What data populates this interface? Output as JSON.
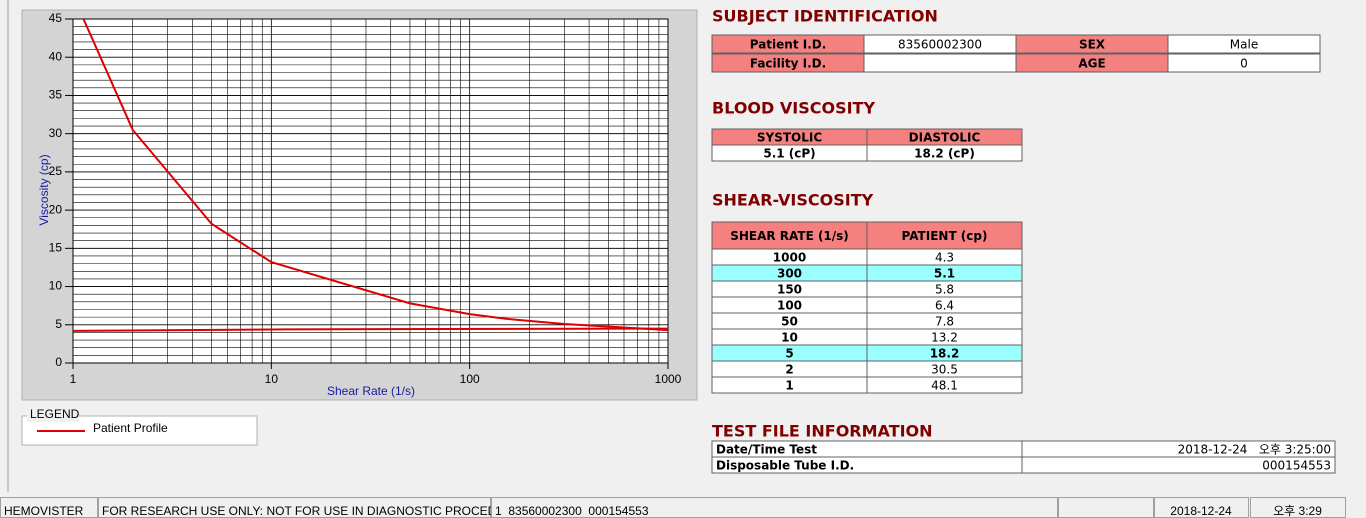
{
  "chart_data": {
    "type": "line",
    "x_label": "Shear Rate (1/s)",
    "y_label": "Viscosity (cp)",
    "log_x": true,
    "grid": true,
    "xlim": [
      1,
      1000
    ],
    "xticks": [
      1,
      10,
      100,
      1000
    ],
    "ylim": [
      0,
      45
    ],
    "yticks": [
      0,
      5,
      10,
      15,
      20,
      25,
      30,
      35,
      40,
      45
    ],
    "legend_title": "LEGEND",
    "series": [
      {
        "name": "Patient Profile",
        "color": "#dd0000",
        "x": [
          1,
          2,
          5,
          10,
          50,
          100,
          150,
          300,
          1000
        ],
        "values": [
          48.1,
          30.5,
          18.2,
          13.2,
          7.8,
          6.4,
          5.8,
          5.1,
          4.3
        ]
      },
      {
        "color": "#dd0000",
        "x": [
          1,
          12,
          1000
        ],
        "values": [
          4.2,
          4.4,
          4.5
        ]
      }
    ]
  },
  "subject_identification": {
    "title": "SUBJECT IDENTIFICATION",
    "fields": [
      {
        "label": "Patient I.D.",
        "value": "83560002300"
      },
      {
        "label": "SEX",
        "value": "Male"
      },
      {
        "label": "Facility I.D."
      },
      {
        "label": "AGE",
        "value": 0
      }
    ]
  },
  "blood_viscosity": {
    "title": "BLOOD VISCOSITY",
    "headers": [
      "SYSTOLIC",
      "DIASTOLIC"
    ],
    "values": [
      "5.1 (cP)",
      "18.2 (cP)"
    ]
  },
  "shear_viscosity": {
    "title": "SHEAR-VISCOSITY",
    "headers": [
      "SHEAR RATE (1/s)",
      "PATIENT (cp)"
    ],
    "rows": [
      [
        1000,
        4.3
      ],
      [
        300,
        5.1
      ],
      [
        150,
        5.8
      ],
      [
        100,
        6.4
      ],
      [
        50,
        7.8
      ],
      [
        10,
        13.2
      ],
      [
        5,
        18.2
      ],
      [
        2,
        30.5
      ],
      [
        1,
        48.1
      ]
    ],
    "highlighted_rows": [
      1,
      6
    ]
  },
  "test_file": {
    "title": "TEST FILE INFORMATION",
    "rows": [
      [
        "Date/Time Test",
        "2018-12-24   오후 3:25:00"
      ],
      [
        "Disposable Tube I.D.",
        "000154553"
      ]
    ]
  },
  "status_bar": [
    "HEMOVISTER",
    "FOR RESEARCH USE ONLY: NOT FOR USE IN DIAGNOSTIC PROCEDURES",
    "1  83560002300  000154553",
    "2018-12-24",
    "오후 3:29"
  ]
}
